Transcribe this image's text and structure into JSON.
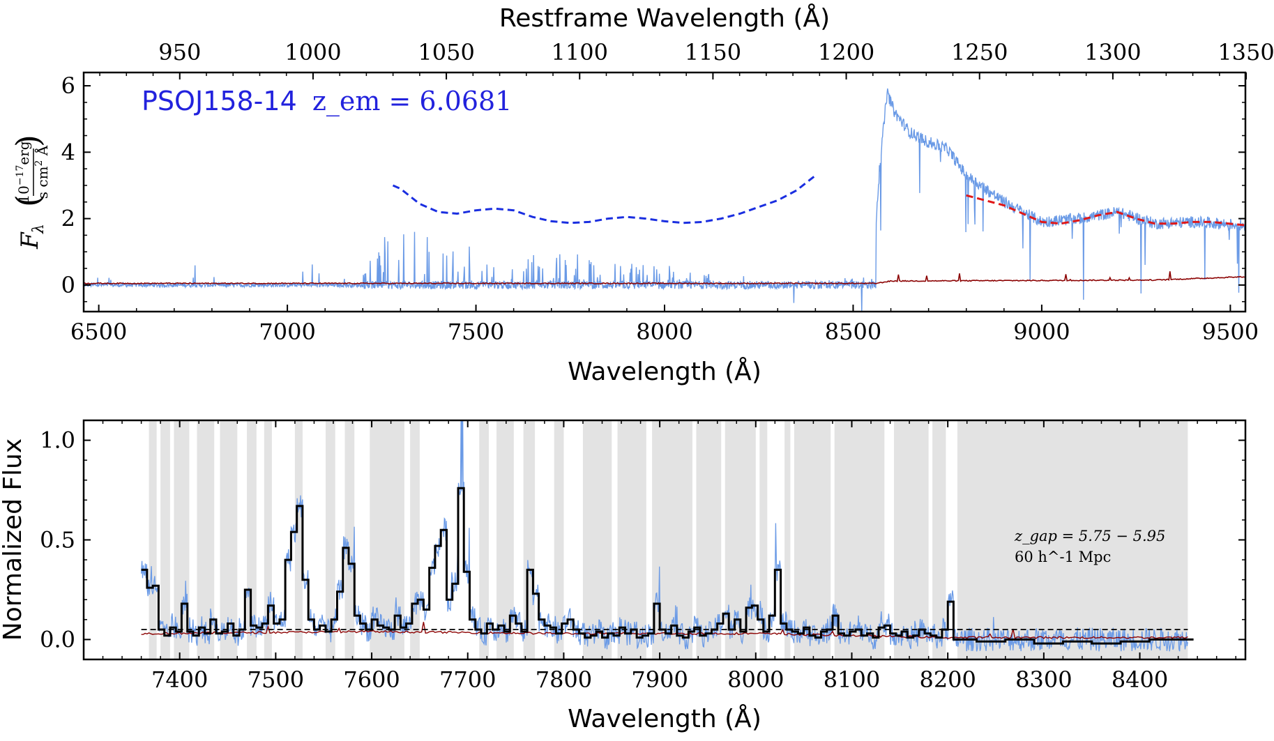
{
  "chart_data": [
    {
      "type": "line",
      "name": "full-spectrum",
      "title": "",
      "quasar_label": {
        "name": "PSOJ158-14",
        "z_label": "z_em = 6.0681",
        "color": "#2222dd"
      },
      "xlabel": "Wavelength (Å)",
      "ylabel": "F_λ (10^-17 erg / s cm² Å)",
      "x2label": "Restframe Wavelength (Å)",
      "xlim": [
        6460,
        9540
      ],
      "ylim": [
        -0.8,
        6.4
      ],
      "xticks": [
        6500,
        7000,
        7500,
        8000,
        8500,
        9000,
        9500
      ],
      "yticks": [
        0,
        2,
        4,
        6
      ],
      "x2ticks": [
        950,
        1000,
        1050,
        1100,
        1150,
        1200,
        1250,
        1300,
        1350
      ],
      "z_em": 6.0681,
      "colors": {
        "flux": "#6a9ae6",
        "error": "#8b0000",
        "continuum_fit": "#e01818",
        "continuum_pred": "#1a2ee0"
      },
      "flux_segments": {
        "x": [
          6460,
          7200,
          7250,
          7300,
          7350,
          7400,
          7500,
          7600,
          7700,
          7800,
          8000,
          8200,
          8400,
          8550,
          8570,
          8590,
          8610,
          8650,
          8700,
          8750,
          8800,
          8900,
          9000,
          9100,
          9200,
          9300,
          9400,
          9540
        ],
        "y": [
          0.05,
          0.1,
          0.6,
          0.9,
          0.7,
          0.5,
          0.4,
          0.3,
          0.4,
          0.3,
          0.2,
          0.1,
          0.0,
          0.1,
          3.5,
          5.8,
          5.2,
          4.6,
          4.3,
          4.1,
          3.3,
          2.5,
          1.9,
          2.0,
          2.2,
          1.85,
          1.9,
          1.8
        ]
      },
      "continuum_fit": {
        "x": [
          8800,
          8850,
          8900,
          8950,
          9000,
          9050,
          9100,
          9150,
          9200,
          9250,
          9300,
          9350,
          9400,
          9450,
          9540
        ],
        "y": [
          2.7,
          2.55,
          2.4,
          2.15,
          1.9,
          1.85,
          1.95,
          2.1,
          2.2,
          2.0,
          1.85,
          1.85,
          1.9,
          1.9,
          1.8
        ]
      },
      "continuum_pred": {
        "x": [
          7280,
          7300,
          7350,
          7400,
          7450,
          7500,
          7550,
          7600,
          7650,
          7700,
          7750,
          7800,
          7850,
          7900,
          7950,
          8000,
          8050,
          8100,
          8150,
          8200,
          8250,
          8300,
          8350,
          8400
        ],
        "y": [
          3.0,
          2.9,
          2.45,
          2.2,
          2.15,
          2.25,
          2.3,
          2.25,
          2.05,
          1.92,
          1.87,
          1.9,
          2.0,
          2.05,
          2.0,
          1.92,
          1.87,
          1.9,
          2.0,
          2.15,
          2.35,
          2.55,
          2.85,
          3.3
        ]
      },
      "error_spectrum": {
        "x": [
          6460,
          8560,
          8600,
          9300,
          9540
        ],
        "y": [
          0.05,
          0.05,
          0.12,
          0.15,
          0.25
        ]
      }
    },
    {
      "type": "line",
      "name": "normalized-forest",
      "title": "",
      "xlabel": "Wavelength (Å)",
      "ylabel": "Normalized Flux",
      "xlim": [
        7300,
        8510
      ],
      "ylim": [
        -0.1,
        1.1
      ],
      "xticks": [
        7400,
        7500,
        7600,
        7700,
        7800,
        7900,
        8000,
        8100,
        8200,
        8300,
        8400
      ],
      "yticks": [
        0.0,
        0.5,
        1.0
      ],
      "annotation": {
        "line1": "z_gap = 5.75 − 5.95",
        "line2": "60 h^-1 Mpc"
      },
      "threshold": 0.05,
      "gap_range": [
        8205,
        8450
      ],
      "colors": {
        "flux": "#6a9ae6",
        "binned": "#000000",
        "error": "#8b0000",
        "shade": "#e3e3e3"
      },
      "binned_flux": {
        "x": [
          7360,
          7366,
          7372,
          7378,
          7384,
          7390,
          7396,
          7402,
          7408,
          7414,
          7420,
          7426,
          7432,
          7438,
          7444,
          7450,
          7456,
          7462,
          7468,
          7474,
          7480,
          7486,
          7492,
          7498,
          7504,
          7510,
          7516,
          7522,
          7528,
          7534,
          7540,
          7546,
          7552,
          7558,
          7564,
          7570,
          7576,
          7582,
          7588,
          7594,
          7600,
          7606,
          7612,
          7618,
          7624,
          7630,
          7636,
          7642,
          7648,
          7654,
          7660,
          7666,
          7672,
          7678,
          7684,
          7690,
          7696,
          7702,
          7708,
          7714,
          7720,
          7726,
          7732,
          7738,
          7744,
          7750,
          7756,
          7762,
          7768,
          7774,
          7780,
          7786,
          7792,
          7798,
          7804,
          7810,
          7816,
          7822,
          7828,
          7834,
          7840,
          7846,
          7852,
          7858,
          7864,
          7870,
          7876,
          7882,
          7888,
          7894,
          7900,
          7906,
          7912,
          7918,
          7924,
          7930,
          7936,
          7942,
          7948,
          7954,
          7960,
          7966,
          7972,
          7978,
          7984,
          7990,
          7996,
          8002,
          8008,
          8014,
          8020,
          8026,
          8032,
          8038,
          8044,
          8050,
          8056,
          8062,
          8068,
          8074,
          8080,
          8086,
          8092,
          8098,
          8104,
          8110,
          8116,
          8122,
          8128,
          8134,
          8140,
          8146,
          8152,
          8158,
          8164,
          8170,
          8176,
          8182,
          8188,
          8194,
          8200,
          8206
        ],
        "y": [
          0.35,
          0.26,
          0.27,
          0.05,
          0.02,
          0.06,
          0.04,
          0.18,
          0.04,
          0.02,
          0.06,
          0.03,
          0.1,
          0.03,
          0.04,
          0.08,
          0.02,
          0.05,
          0.25,
          0.07,
          0.06,
          0.08,
          0.17,
          0.08,
          0.1,
          0.4,
          0.54,
          0.67,
          0.3,
          0.1,
          0.05,
          0.07,
          0.04,
          0.1,
          0.24,
          0.46,
          0.38,
          0.12,
          0.08,
          0.05,
          0.1,
          0.07,
          0.06,
          0.05,
          0.12,
          0.06,
          0.08,
          0.18,
          0.2,
          0.15,
          0.36,
          0.47,
          0.55,
          0.2,
          0.28,
          0.76,
          0.34,
          0.1,
          0.05,
          0.03,
          0.08,
          0.05,
          0.07,
          0.04,
          0.12,
          0.08,
          0.04,
          0.35,
          0.23,
          0.1,
          0.07,
          0.06,
          0.03,
          0.08,
          0.1,
          0.05,
          0.03,
          0.01,
          0.02,
          0.04,
          0.01,
          0.03,
          0.02,
          0.06,
          0.03,
          0.05,
          0.01,
          0.02,
          0.03,
          0.18,
          0.05,
          0.03,
          0.07,
          0.02,
          0.01,
          0.04,
          0.06,
          0.02,
          0.03,
          0.05,
          0.08,
          0.13,
          0.05,
          0.1,
          0.04,
          0.16,
          0.17,
          0.1,
          0.04,
          0.12,
          0.35,
          0.08,
          0.05,
          0.04,
          0.03,
          0.06,
          0.02,
          0.01,
          0.04,
          0.05,
          0.12,
          0.03,
          0.02,
          0.04,
          0.05,
          0.02,
          0.03,
          0.01,
          0.06,
          0.07,
          0.03,
          0.02,
          0.04,
          0.01,
          0.02,
          0.05,
          0.03,
          0.02,
          0.01,
          0.05,
          0.19,
          0.0
        ]
      },
      "binned_flux_gap": {
        "x": [
          8206,
          8230,
          8260,
          8290,
          8320,
          8350,
          8380,
          8410,
          8450
        ],
        "y": [
          0.0,
          -0.01,
          0.0,
          -0.02,
          -0.01,
          -0.02,
          -0.01,
          0.0,
          0.0
        ]
      },
      "error_spectrum": {
        "x": [
          7360,
          7600,
          7800,
          8000,
          8200,
          8450
        ],
        "y": [
          0.03,
          0.04,
          0.03,
          0.03,
          0.01,
          0.01
        ]
      },
      "shaded_regions": [
        [
          7368,
          7376
        ],
        [
          7380,
          7390
        ],
        [
          7394,
          7410
        ],
        [
          7418,
          7436
        ],
        [
          7442,
          7460
        ],
        [
          7470,
          7480
        ],
        [
          7488,
          7496
        ],
        [
          7520,
          7528
        ],
        [
          7552,
          7562
        ],
        [
          7572,
          7582
        ],
        [
          7598,
          7634
        ],
        [
          7640,
          7650
        ],
        [
          7712,
          7722
        ],
        [
          7730,
          7748
        ],
        [
          7758,
          7770
        ],
        [
          7790,
          7800
        ],
        [
          7820,
          7850
        ],
        [
          7856,
          7886
        ],
        [
          7892,
          7934
        ],
        [
          7938,
          7964
        ],
        [
          7968,
          8000
        ],
        [
          8004,
          8012
        ],
        [
          8030,
          8036
        ],
        [
          8040,
          8078
        ],
        [
          8082,
          8134
        ],
        [
          8144,
          8180
        ],
        [
          8184,
          8198
        ],
        [
          8210,
          8450
        ]
      ]
    }
  ]
}
